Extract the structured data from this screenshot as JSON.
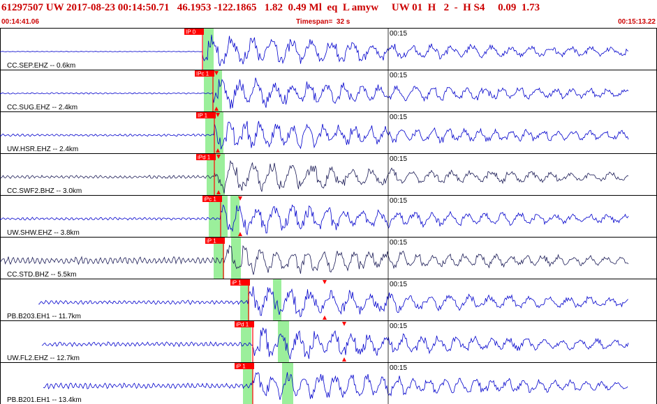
{
  "header": {
    "title": "61297507 UW 2017-08-23 00:14:50.71   46.1953 -122.1865   1.82  0.49 Ml  eq  L amyw     UW 01  H   2  -  H S4     0.09  1.73",
    "start_time": "00:14:41.06",
    "timespan": "Timespan=  32 s",
    "end_time": "00:15:13.22"
  },
  "colors": {
    "trace": "#0000cc",
    "trace_dark": "#1a1a55",
    "pick": "#ff0000",
    "window": "#9bef9b",
    "border": "#000000",
    "label": "#000000"
  },
  "traces": [
    {
      "label": "CC.SEP.EHZ -- 0.6km",
      "pick": "IP 0",
      "tick": "00:15",
      "color_key": "trace"
    },
    {
      "label": "CC.SUG.EHZ -- 2.4km",
      "pick": "IPc 1",
      "tick": "00:15",
      "color_key": "trace"
    },
    {
      "label": "UW.HSR.EHZ -- 2.4km",
      "pick": "IP 1",
      "tick": "00:15",
      "color_key": "trace"
    },
    {
      "label": "CC.SWF2.BHZ -- 3.0km",
      "pick": "iPd 1",
      "tick": "00:15",
      "color_key": "trace_dark"
    },
    {
      "label": "UW.SHW.EHZ -- 3.8km",
      "pick": "iPc 1",
      "tick": "00:15",
      "color_key": "trace"
    },
    {
      "label": "CC.STD.BHZ -- 5.5km",
      "pick": "iP 1",
      "tick": "00:15",
      "color_key": "trace_dark"
    },
    {
      "label": "PB.B203.EH1 -- 11.7km",
      "pick": "iP 1",
      "tick": "00:15",
      "color_key": "trace"
    },
    {
      "label": "UW.FL2.EHZ -- 12.7km",
      "pick": "iPd 1",
      "tick": "00:15",
      "color_key": "trace"
    },
    {
      "label": "PB.B201.EH1 -- 13.4km",
      "pick": "iP 1",
      "tick": "00:15",
      "color_key": "trace"
    }
  ]
}
